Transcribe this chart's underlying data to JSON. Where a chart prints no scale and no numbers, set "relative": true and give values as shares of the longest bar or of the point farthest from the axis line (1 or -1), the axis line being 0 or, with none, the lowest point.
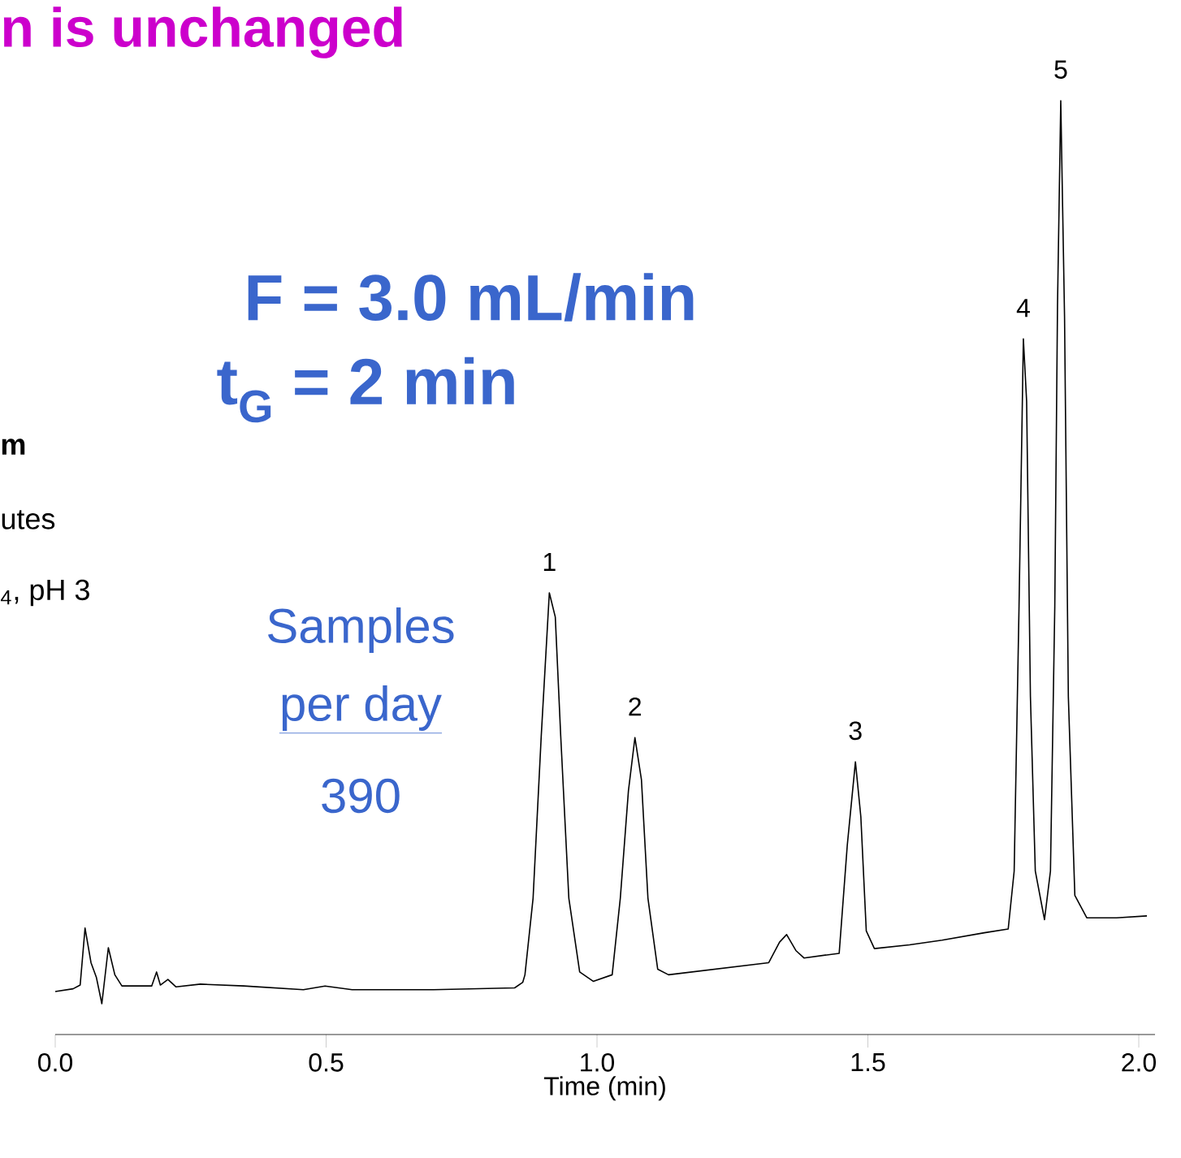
{
  "chart_data": {
    "type": "line",
    "relative": true,
    "xlabel": "Time (min)",
    "xlim": [
      0,
      2.03
    ],
    "xticks": [
      {
        "value": 0,
        "label": "0.0"
      },
      0.5,
      {
        "value": 1,
        "label": "1.0"
      },
      1.5,
      {
        "value": 2,
        "label": "2.0"
      }
    ],
    "series": [
      {
        "color": "#000000",
        "x": [
          0,
          0.033,
          0.046,
          0.055,
          0.066,
          0.076,
          0.086,
          0.098,
          0.11,
          0.123,
          0.178,
          0.187,
          0.194,
          0.208,
          0.223,
          0.268,
          0.348,
          0.458,
          0.498,
          0.548,
          0.698,
          0.848,
          0.863,
          0.867,
          0.882,
          0.897,
          0.912,
          0.923,
          0.933,
          0.948,
          0.968,
          0.993,
          1.028,
          1.043,
          1.058,
          1.07,
          1.082,
          1.094,
          1.112,
          1.132,
          1.317,
          1.337,
          1.35,
          1.367,
          1.382,
          1.447,
          1.462,
          1.477,
          1.487,
          1.497,
          1.512,
          1.577,
          1.637,
          1.715,
          1.759,
          1.77,
          1.779,
          1.787,
          1.793,
          1.8,
          1.809,
          1.826,
          1.837,
          1.845,
          1.85,
          1.856,
          1.863,
          1.87,
          1.882,
          1.904,
          1.959,
          2.015
        ],
        "values": [
          0.046,
          0.049,
          0.053,
          0.114,
          0.077,
          0.061,
          0.033,
          0.093,
          0.064,
          0.052,
          0.052,
          0.067,
          0.053,
          0.059,
          0.051,
          0.054,
          0.052,
          0.048,
          0.052,
          0.048,
          0.048,
          0.05,
          0.056,
          0.064,
          0.146,
          0.319,
          0.473,
          0.447,
          0.32,
          0.146,
          0.067,
          0.057,
          0.064,
          0.146,
          0.261,
          0.318,
          0.273,
          0.146,
          0.07,
          0.064,
          0.077,
          0.099,
          0.107,
          0.09,
          0.082,
          0.087,
          0.203,
          0.292,
          0.233,
          0.111,
          0.092,
          0.096,
          0.101,
          0.109,
          0.113,
          0.175,
          0.459,
          0.745,
          0.678,
          0.362,
          0.175,
          0.123,
          0.175,
          0.459,
          0.781,
          1,
          0.768,
          0.362,
          0.149,
          0.125,
          0.125,
          0.127
        ]
      }
    ],
    "annotations": [
      "n is unchanged",
      "F  = 3.0 mL/min",
      "t$_{G}$  = 2 min",
      "m",
      "utes",
      "$_{4}$, pH 3",
      "Samples",
      "per day",
      "390",
      {
        "text": "1",
        "x": 0.912,
        "y": 0.473
      },
      {
        "text": "2",
        "x": 1.07,
        "y": 0.318
      },
      {
        "text": "3",
        "x": 1.477,
        "y": 0.292
      },
      {
        "text": "4",
        "x": 1.787,
        "y": 0.745
      },
      {
        "text": "5",
        "x": 1.856,
        "y": 1
      }
    ]
  }
}
